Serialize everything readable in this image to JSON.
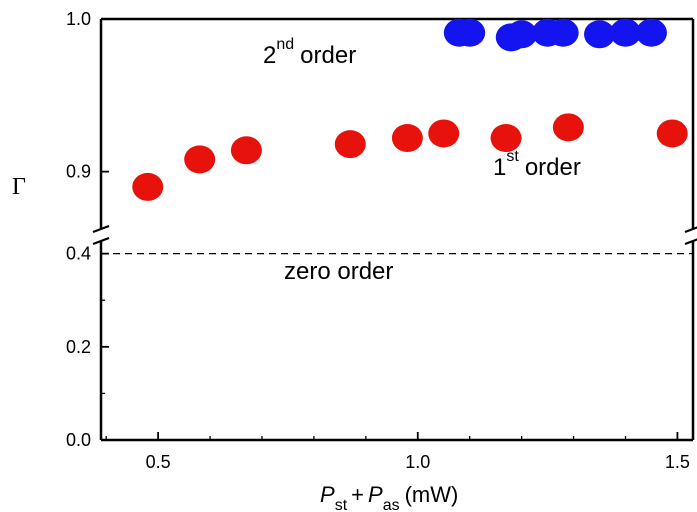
{
  "chart_data": {
    "type": "scatter",
    "ylabel": "Γ",
    "xlabel": {
      "p": "P",
      "st": "st",
      "plus": "+",
      "as": "as",
      "unit": "(mW)"
    },
    "xlim": [
      0.39,
      1.53
    ],
    "x_ticks": [
      "0.5",
      "1.0",
      "1.5"
    ],
    "x_tick_values": [
      0.5,
      1.0,
      1.5
    ],
    "y_axis_broken": true,
    "y_lower": {
      "range": [
        0.0,
        0.44
      ],
      "ticks": [
        "0.0",
        "0.2",
        "0.4"
      ],
      "tick_values": [
        0.0,
        0.2,
        0.4
      ]
    },
    "y_upper": {
      "range": [
        0.867,
        1.0
      ],
      "ticks": [
        "0.9",
        "1.0"
      ],
      "tick_values": [
        0.9,
        1.0
      ]
    },
    "dashed_line": {
      "y": 0.4
    },
    "annotations": {
      "second": {
        "base": "2",
        "sup": "nd",
        "text": "order"
      },
      "first": {
        "base": "1",
        "sup": "st",
        "text": "order"
      },
      "zero": {
        "text": "zero order"
      }
    },
    "series": [
      {
        "color": "#e8120c",
        "points": [
          {
            "x": 0.48,
            "y": 0.89
          },
          {
            "x": 0.58,
            "y": 0.908
          },
          {
            "x": 0.67,
            "y": 0.914
          },
          {
            "x": 0.87,
            "y": 0.918
          },
          {
            "x": 0.98,
            "y": 0.922
          },
          {
            "x": 1.05,
            "y": 0.925
          },
          {
            "x": 1.17,
            "y": 0.922
          },
          {
            "x": 1.29,
            "y": 0.929
          },
          {
            "x": 1.49,
            "y": 0.925
          }
        ]
      },
      {
        "color": "#1414f0",
        "points": [
          {
            "x": 1.08,
            "y": 0.991
          },
          {
            "x": 1.1,
            "y": 0.991
          },
          {
            "x": 1.18,
            "y": 0.988
          },
          {
            "x": 1.2,
            "y": 0.99
          },
          {
            "x": 1.25,
            "y": 0.991
          },
          {
            "x": 1.28,
            "y": 0.991
          },
          {
            "x": 1.35,
            "y": 0.99
          },
          {
            "x": 1.4,
            "y": 0.991
          },
          {
            "x": 1.45,
            "y": 0.991
          }
        ]
      }
    ]
  }
}
